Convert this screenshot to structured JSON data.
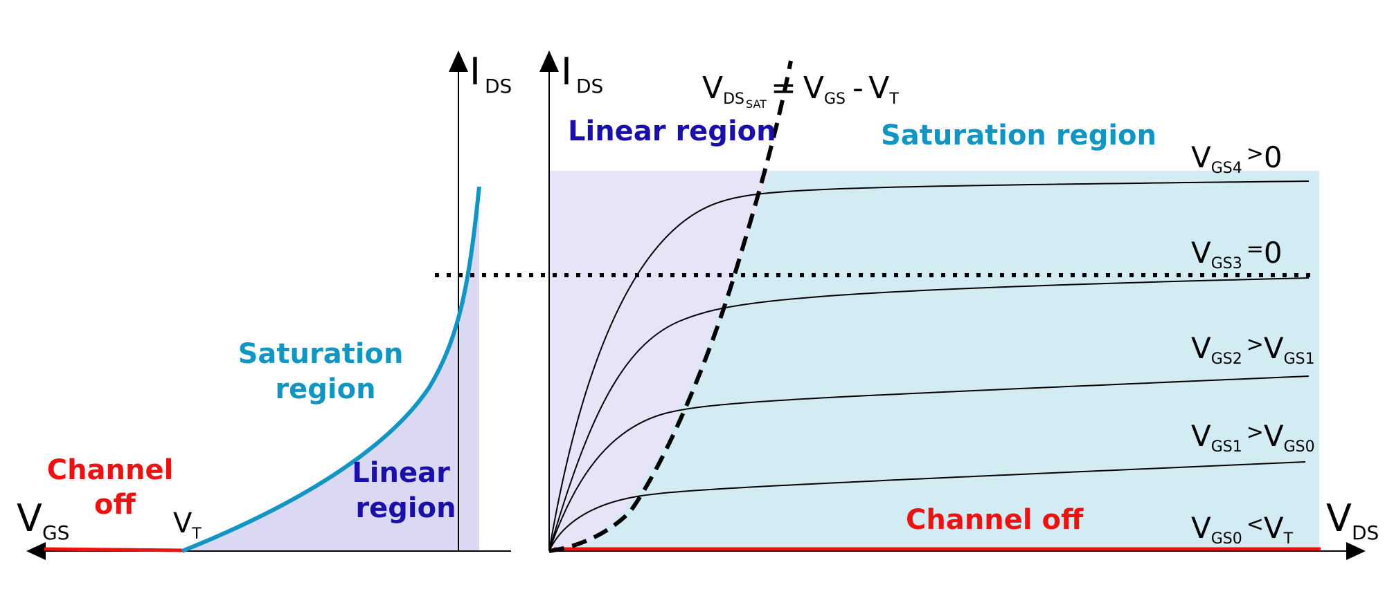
{
  "colors": {
    "saturation": "#1196c4",
    "linear": "#1a0fa8",
    "channel_off": "#ee1111",
    "linear_fill": "#e6e4f6",
    "linear_fill_left": "#dad8f3",
    "saturation_fill": "#d3ecf4",
    "axis": "#000000"
  },
  "left_panel": {
    "y_axis": {
      "main": "I",
      "sub": "DS"
    },
    "x_axis": {
      "main": "V",
      "sub": "GS"
    },
    "threshold": {
      "main": "V",
      "sub": "T"
    },
    "channel_off": [
      "Channel",
      "off"
    ],
    "saturation_region": [
      "Saturation",
      "region"
    ],
    "linear_region": [
      "Linear",
      "region"
    ]
  },
  "right_panel": {
    "y_axis": {
      "main": "I",
      "sub": "DS"
    },
    "x_axis": {
      "main": "V",
      "sub": "DS"
    },
    "vdssat": {
      "v1": "V",
      "s1": "DS",
      "s1b": "SAT",
      "eq": "=",
      "v2": "V",
      "s2": "GS",
      "minus": "-",
      "v3": "V",
      "s3": "T"
    },
    "linear_region": "Linear region",
    "saturation_region": "Saturation region",
    "channel_off": "Channel off",
    "curves": [
      {
        "v": "V",
        "sub": "GS4",
        "op": ">",
        "rhs": "0",
        "rhs_sub": ""
      },
      {
        "v": "V",
        "sub": "GS3",
        "op": "=",
        "rhs": "0",
        "rhs_sub": ""
      },
      {
        "v": "V",
        "sub": "GS2",
        "op": ">",
        "rhs": "V",
        "rhs_sub": "GS1"
      },
      {
        "v": "V",
        "sub": "GS1",
        "op": ">",
        "rhs": "V",
        "rhs_sub": "GS0"
      },
      {
        "v": "V",
        "sub": "GS0",
        "op": "<",
        "rhs": "V",
        "rhs_sub": "T"
      }
    ]
  }
}
